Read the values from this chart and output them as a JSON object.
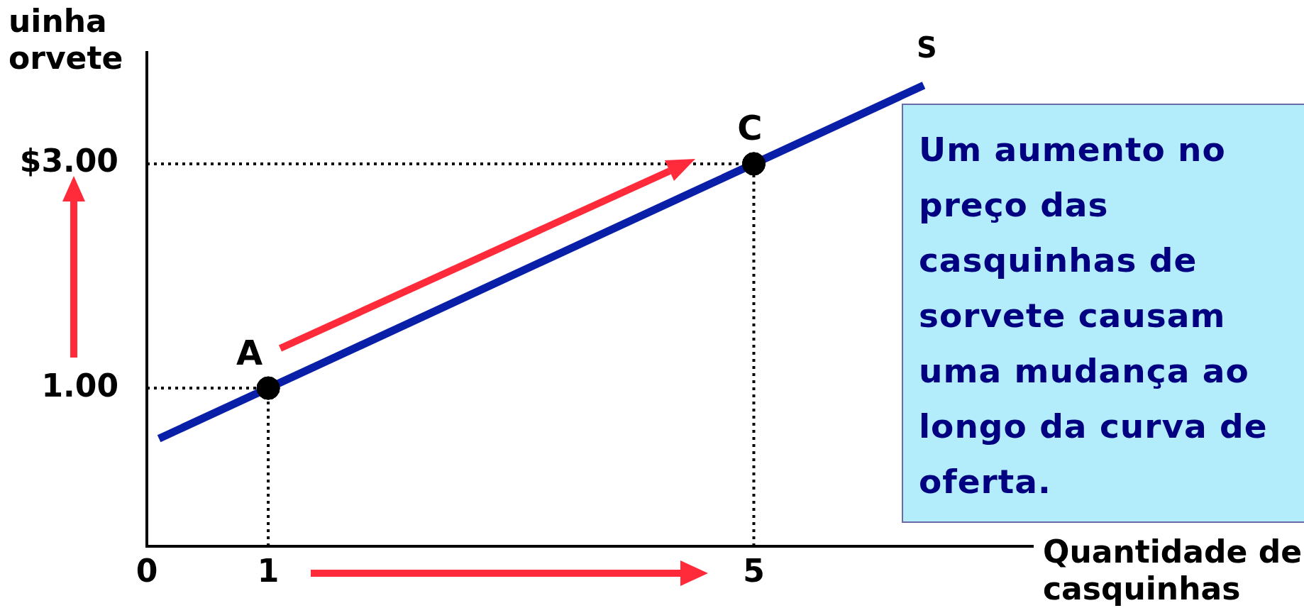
{
  "chart_data": {
    "type": "line",
    "xlabel": "Quantidade de\ncasquinhas",
    "ylabel": "uinha\norvete",
    "series": [
      {
        "name": "S",
        "type": "line",
        "color": "#0a1fa8",
        "x": [
          0.1,
          6.4
        ],
        "values": [
          0.55,
          3.7
        ],
        "marker": "none"
      },
      {
        "type": "scatter",
        "color": "#000000",
        "x": [
          1,
          5
        ],
        "values": [
          1,
          3
        ],
        "marker": "circle"
      }
    ],
    "annotations": [
      {
        "text": "A",
        "x": 1,
        "y": 1
      },
      {
        "text": "C",
        "x": 5,
        "y": 3
      },
      "Um aumento no preço das casquinhas de sorvete causam uma mudança ao longo da curva de oferta."
    ],
    "ref_lines": [
      {
        "axis": "y",
        "value": 3,
        "line_style": "dotted",
        "color": "#000000"
      },
      {
        "axis": "y",
        "value": 1,
        "line_style": "dotted",
        "color": "#000000"
      },
      {
        "axis": "x",
        "value": 1,
        "line_style": "dotted",
        "color": "#000000"
      },
      {
        "axis": "x",
        "value": 5,
        "line_style": "dotted",
        "color": "#000000"
      }
    ],
    "xlim": [
      0,
      7.3
    ],
    "xticks": [
      0,
      1,
      5
    ],
    "ylim": [
      -0.41,
      3.99
    ],
    "yticks": [
      {
        "value": 3,
        "label": "$3.00"
      },
      {
        "value": 1,
        "label": "1.00"
      }
    ],
    "grid": false,
    "legend": false
  }
}
